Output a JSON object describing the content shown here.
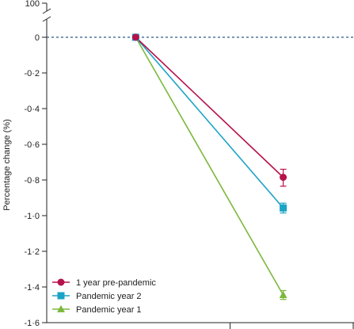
{
  "chart_data": {
    "type": "line",
    "ylabel": "Percentage change (%)",
    "ylim": [
      -1.6,
      0
    ],
    "y_break_label": "100",
    "yticks": [
      {
        "value": 0,
        "label": "0"
      },
      {
        "value": -0.2,
        "label": "-0·2"
      },
      {
        "value": -0.4,
        "label": "-0·4"
      },
      {
        "value": -0.6,
        "label": "-0·6"
      },
      {
        "value": -0.8,
        "label": "-0·8"
      },
      {
        "value": -1.0,
        "label": "-1·0"
      },
      {
        "value": -1.2,
        "label": "-1·2"
      },
      {
        "value": -1.4,
        "label": "-1·4"
      },
      {
        "value": -1.6,
        "label": "-1·6"
      }
    ],
    "x": [
      0,
      1
    ],
    "xlim": [
      -0.92,
      1.48
    ],
    "x_major_ticks": [
      0.64
    ],
    "zero_line": true,
    "legend_position": "bottom-left",
    "series": [
      {
        "name": "1 year pre-pandemic",
        "color": "#b5124b",
        "marker": "circle",
        "values": [
          0,
          -0.785
        ],
        "err_low": [
          0,
          -0.835
        ],
        "err_high": [
          0,
          -0.74
        ]
      },
      {
        "name": "Pandemic year 2",
        "color": "#1ba3c6",
        "marker": "square",
        "values": [
          0,
          -0.957
        ],
        "err_low": [
          0,
          -0.985
        ],
        "err_high": [
          0,
          -0.93
        ]
      },
      {
        "name": "Pandemic year 1",
        "color": "#7bb83c",
        "marker": "triangle",
        "values": [
          0,
          -1.445
        ],
        "err_low": [
          0,
          -1.47
        ],
        "err_high": [
          0,
          -1.42
        ]
      }
    ],
    "zero_line_color": "#2a5a8a"
  }
}
